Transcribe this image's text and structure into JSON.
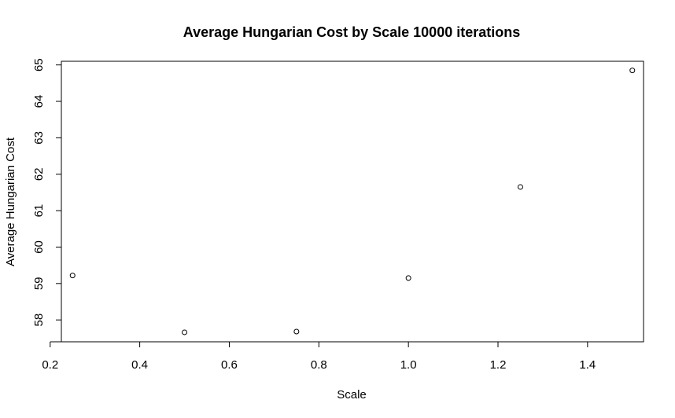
{
  "chart_data": {
    "type": "scatter",
    "title": "Average Hungarian Cost by Scale 10000 iterations",
    "xlabel": "Scale",
    "ylabel": "Average Hungarian Cost",
    "x": [
      0.25,
      0.5,
      0.75,
      1.0,
      1.25,
      1.5
    ],
    "y": [
      59.22,
      57.66,
      57.68,
      59.15,
      61.65,
      64.85
    ],
    "xlim": [
      0.225,
      1.525
    ],
    "ylim": [
      57.4,
      65.1
    ],
    "x_ticks": [
      "0.2",
      "0.4",
      "0.6",
      "0.8",
      "1.0",
      "1.2",
      "1.4"
    ],
    "y_ticks": [
      "58",
      "59",
      "60",
      "61",
      "62",
      "63",
      "64",
      "65"
    ],
    "grid": false,
    "legend": "none",
    "marker": "open-circle",
    "colors": {
      "marker": "#000000",
      "axes": "#000000",
      "background": "#ffffff"
    }
  }
}
